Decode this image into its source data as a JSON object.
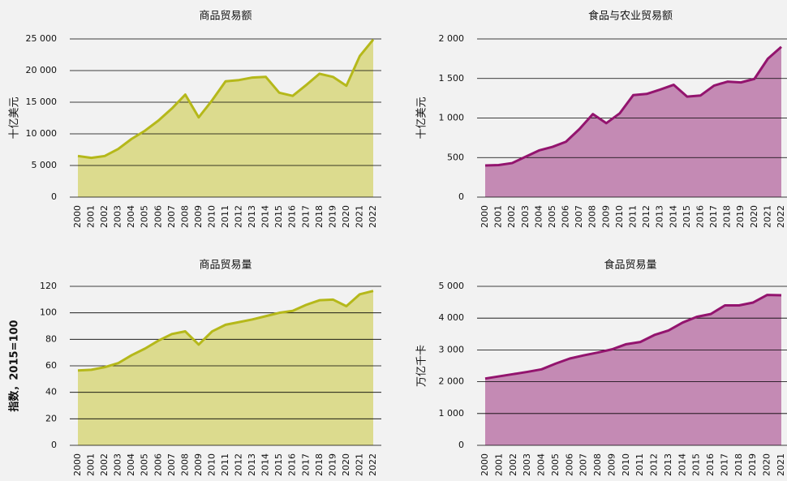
{
  "chart_data": [
    {
      "type": "area",
      "title": "商品贸易额",
      "y_label": "十亿美元",
      "categories": [
        "2000",
        "2001",
        "2002",
        "2003",
        "2004",
        "2005",
        "2006",
        "2007",
        "2008",
        "2009",
        "2010",
        "2011",
        "2012",
        "2013",
        "2014",
        "2015",
        "2016",
        "2017",
        "2018",
        "2019",
        "2020",
        "2021",
        "2022"
      ],
      "values": [
        6500,
        6200,
        6500,
        7600,
        9200,
        10500,
        12100,
        14000,
        16200,
        12600,
        15300,
        18300,
        18500,
        18900,
        19000,
        16500,
        16000,
        17700,
        19500,
        19000,
        17600,
        22300,
        24900
      ],
      "color": "#dcdb8e",
      "line_color": "#b5b81a",
      "ylim": [
        0,
        25000
      ],
      "yticks": [
        0,
        {
          "value": 5000,
          "label": "5 000"
        },
        {
          "value": 10000,
          "label": "10 000"
        },
        {
          "value": 15000,
          "label": "15 000"
        },
        {
          "value": 20000,
          "label": "20 000"
        },
        {
          "value": 25000,
          "label": "25 000"
        }
      ]
    },
    {
      "type": "area",
      "title": "食品与农业贸易额",
      "y_label": "十亿美元",
      "categories": [
        "2000",
        "2001",
        "2002",
        "2003",
        "2004",
        "2005",
        "2006",
        "2007",
        "2008",
        "2009",
        "2010",
        "2011",
        "2012",
        "2013",
        "2014",
        "2015",
        "2016",
        "2017",
        "2018",
        "2019",
        "2020",
        "2021",
        "2022"
      ],
      "values": [
        400,
        405,
        430,
        510,
        590,
        635,
        700,
        860,
        1050,
        935,
        1060,
        1290,
        1305,
        1360,
        1420,
        1270,
        1285,
        1410,
        1460,
        1450,
        1495,
        1750,
        1900
      ],
      "color": "#c48ab4",
      "line_color": "#93146e",
      "ylim": [
        0,
        2000
      ],
      "yticks": [
        0,
        500,
        {
          "value": 1000,
          "label": "1 000"
        },
        {
          "value": 1500,
          "label": "1 500"
        },
        {
          "value": 2000,
          "label": "2 000"
        }
      ]
    },
    {
      "type": "area",
      "title": "商品贸易量",
      "y_label": "指数，2015=100",
      "categories": [
        "2000",
        "2001",
        "2002",
        "2003",
        "2004",
        "2005",
        "2006",
        "2007",
        "2008",
        "2009",
        "2010",
        "2011",
        "2012",
        "2013",
        "2014",
        "2015",
        "2016",
        "2017",
        "2018",
        "2019",
        "2020",
        "2021",
        "2022"
      ],
      "values": [
        56.5,
        57,
        59,
        62,
        68,
        73,
        79,
        84,
        86,
        76,
        86,
        91,
        93,
        95,
        97.5,
        100,
        101.5,
        106,
        109.5,
        110,
        105,
        114,
        116.5
      ],
      "color": "#dcdb8e",
      "line_color": "#b5b81a",
      "ylim": [
        0,
        120
      ],
      "yticks": [
        0,
        20,
        40,
        60,
        80,
        100,
        120
      ]
    },
    {
      "type": "area",
      "title": "食品贸易量",
      "y_label": "万亿千卡",
      "categories": [
        "2000",
        "2001",
        "2002",
        "2003",
        "2004",
        "2005",
        "2006",
        "2007",
        "2008",
        "2009",
        "2010",
        "2011",
        "2012",
        "2013",
        "2014",
        "2015",
        "2016",
        "2017",
        "2018",
        "2019",
        "2020",
        "2021"
      ],
      "values": [
        2100,
        2170,
        2240,
        2310,
        2390,
        2570,
        2730,
        2830,
        2920,
        3020,
        3180,
        3250,
        3470,
        3610,
        3860,
        4040,
        4130,
        4400,
        4400,
        4490,
        4730,
        4720
      ],
      "color": "#c48ab4",
      "line_color": "#93146e",
      "ylim": [
        0,
        5000
      ],
      "yticks": [
        0,
        {
          "value": 1000,
          "label": "1 000"
        },
        {
          "value": 2000,
          "label": "2 000"
        },
        {
          "value": 3000,
          "label": "3 000"
        },
        {
          "value": 4000,
          "label": "4 000"
        },
        {
          "value": 5000,
          "label": "5 000"
        }
      ]
    }
  ]
}
